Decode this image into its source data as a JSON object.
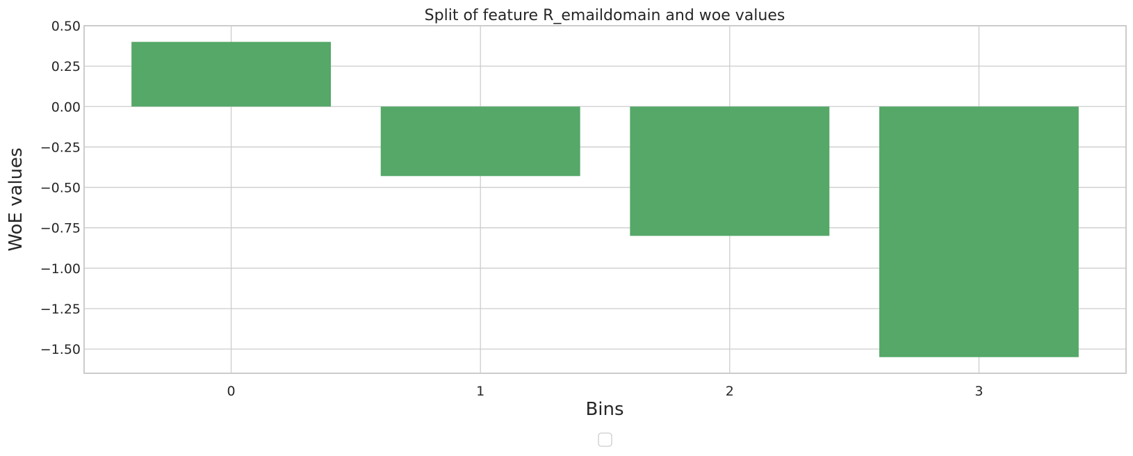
{
  "chart_data": {
    "type": "bar",
    "title": "Split of feature R_emaildomain and woe values",
    "xlabel": "Bins",
    "ylabel": "WoE values",
    "categories": [
      "0",
      "1",
      "2",
      "3"
    ],
    "values": [
      0.4,
      -0.43,
      -0.8,
      -1.55
    ],
    "ylim": [
      -1.65,
      0.5
    ],
    "xlim": [
      -0.59,
      3.59
    ],
    "yticks": [
      "0.50",
      "0.25",
      "0.00",
      "−0.25",
      "−0.50",
      "−0.75",
      "−1.00",
      "−1.25",
      "−1.50"
    ],
    "ytick_values": [
      0.5,
      0.25,
      0.0,
      -0.25,
      -0.5,
      -0.75,
      -1.0,
      -1.25,
      -1.5
    ],
    "grid": true,
    "bar_color": "#55a868",
    "grid_color": "#cccccc",
    "legend": {
      "placement": "bottom-center",
      "entries": []
    }
  }
}
